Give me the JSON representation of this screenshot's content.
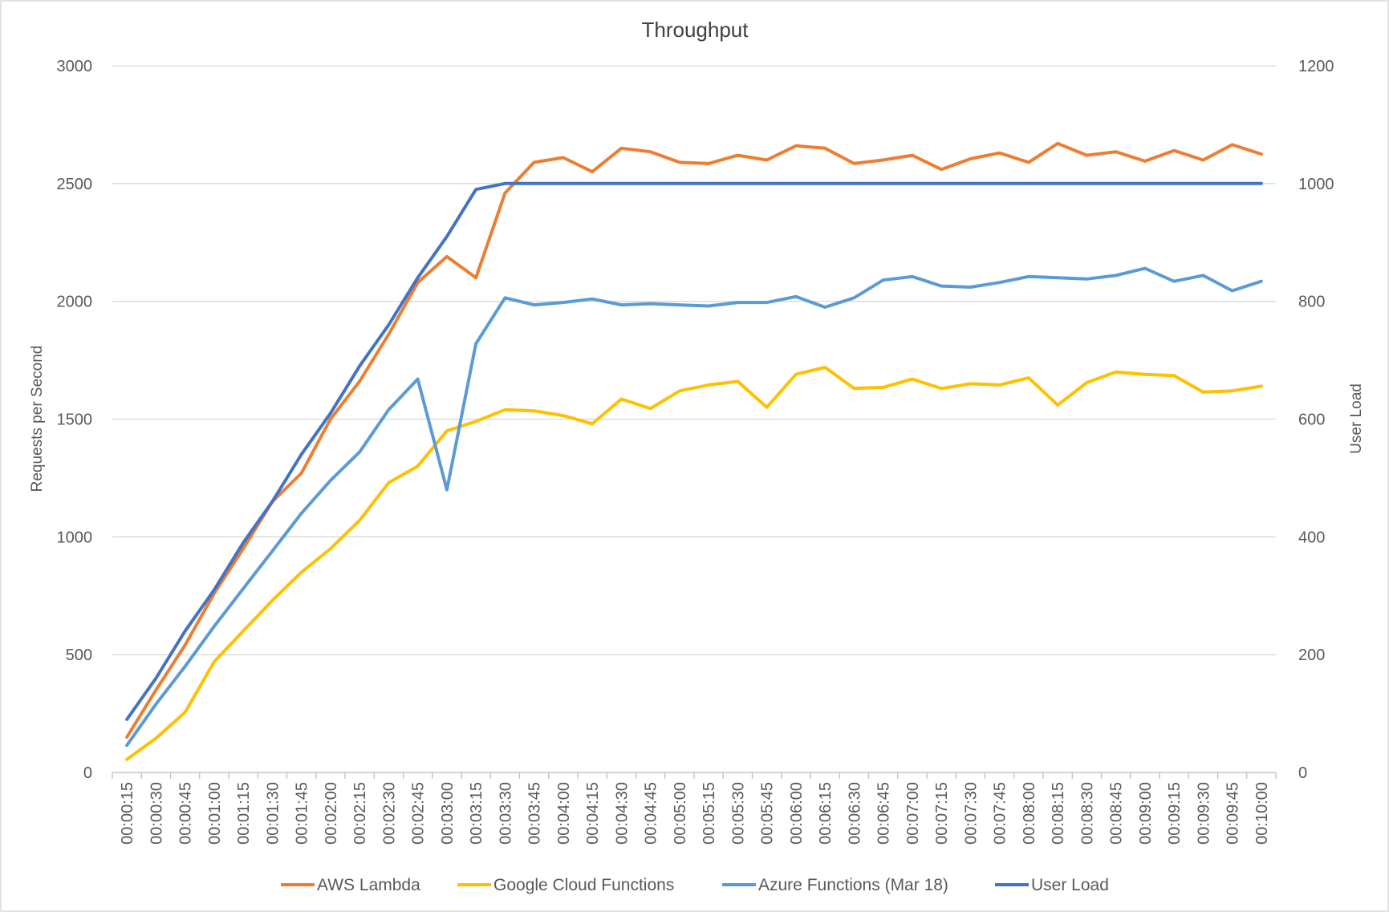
{
  "chart_data": {
    "type": "line",
    "title": "Throughput",
    "ylabel": "Requests per Second",
    "y2label": "User Load",
    "ylim": [
      0,
      3000
    ],
    "y2lim": [
      0,
      1200
    ],
    "yticks": [
      "0",
      "500",
      "1000",
      "1500",
      "2000",
      "2500",
      "3000"
    ],
    "y2ticks": [
      "0",
      "200",
      "400",
      "600",
      "800",
      "1000",
      "1200"
    ],
    "grid": true,
    "legend_position": "bottom",
    "x": [
      "00:00:15",
      "00:00:30",
      "00:00:45",
      "00:01:00",
      "00:01:15",
      "00:01:30",
      "00:01:45",
      "00:02:00",
      "00:02:15",
      "00:02:30",
      "00:02:45",
      "00:03:00",
      "00:03:15",
      "00:03:30",
      "00:03:45",
      "00:04:00",
      "00:04:15",
      "00:04:30",
      "00:04:45",
      "00:05:00",
      "00:05:15",
      "00:05:30",
      "00:05:45",
      "00:06:00",
      "00:06:15",
      "00:06:30",
      "00:06:45",
      "00:07:00",
      "00:07:15",
      "00:07:30",
      "00:07:45",
      "00:08:00",
      "00:08:15",
      "00:08:30",
      "00:08:45",
      "00:09:00",
      "00:09:15",
      "00:09:30",
      "00:09:45",
      "00:10:00"
    ],
    "series": [
      {
        "name": "AWS Lambda",
        "color": "#ED7D31",
        "axis": "left",
        "values": [
          150,
          350,
          540,
          760,
          950,
          1150,
          1270,
          1500,
          1660,
          1860,
          2080,
          2190,
          2100,
          2460,
          2590,
          2610,
          2550,
          2650,
          2635,
          2590,
          2585,
          2620,
          2600,
          2660,
          2650,
          2585,
          2600,
          2620,
          2560,
          2605,
          2630,
          2590,
          2670,
          2620,
          2635,
          2595,
          2640,
          2600,
          2665,
          2625
        ]
      },
      {
        "name": "Google Cloud Functions",
        "color": "#FFC000",
        "axis": "left",
        "values": [
          55,
          145,
          255,
          470,
          600,
          730,
          850,
          950,
          1070,
          1230,
          1300,
          1450,
          1490,
          1540,
          1535,
          1515,
          1480,
          1585,
          1545,
          1620,
          1645,
          1660,
          1550,
          1690,
          1720,
          1630,
          1635,
          1670,
          1630,
          1650,
          1645,
          1675,
          1560,
          1655,
          1700,
          1690,
          1685,
          1615,
          1620,
          1640
        ]
      },
      {
        "name": "Azure Functions (Mar 18)",
        "color": "#5B9BD5",
        "axis": "left",
        "values": [
          115,
          290,
          450,
          620,
          780,
          940,
          1100,
          1240,
          1360,
          1540,
          1670,
          1200,
          1820,
          2015,
          1985,
          1995,
          2010,
          1985,
          1990,
          1985,
          1980,
          1995,
          1995,
          2020,
          1975,
          2015,
          2090,
          2105,
          2065,
          2060,
          2080,
          2105,
          2100,
          2095,
          2110,
          2140,
          2085,
          2110,
          2045,
          2085
        ]
      },
      {
        "name": "User Load",
        "color": "#4472C4",
        "axis": "right",
        "values": [
          90,
          160,
          240,
          310,
          390,
          460,
          540,
          610,
          690,
          760,
          840,
          910,
          990,
          1000,
          1000,
          1000,
          1000,
          1000,
          1000,
          1000,
          1000,
          1000,
          1000,
          1000,
          1000,
          1000,
          1000,
          1000,
          1000,
          1000,
          1000,
          1000,
          1000,
          1000,
          1000,
          1000,
          1000,
          1000,
          1000,
          1000
        ]
      }
    ]
  }
}
